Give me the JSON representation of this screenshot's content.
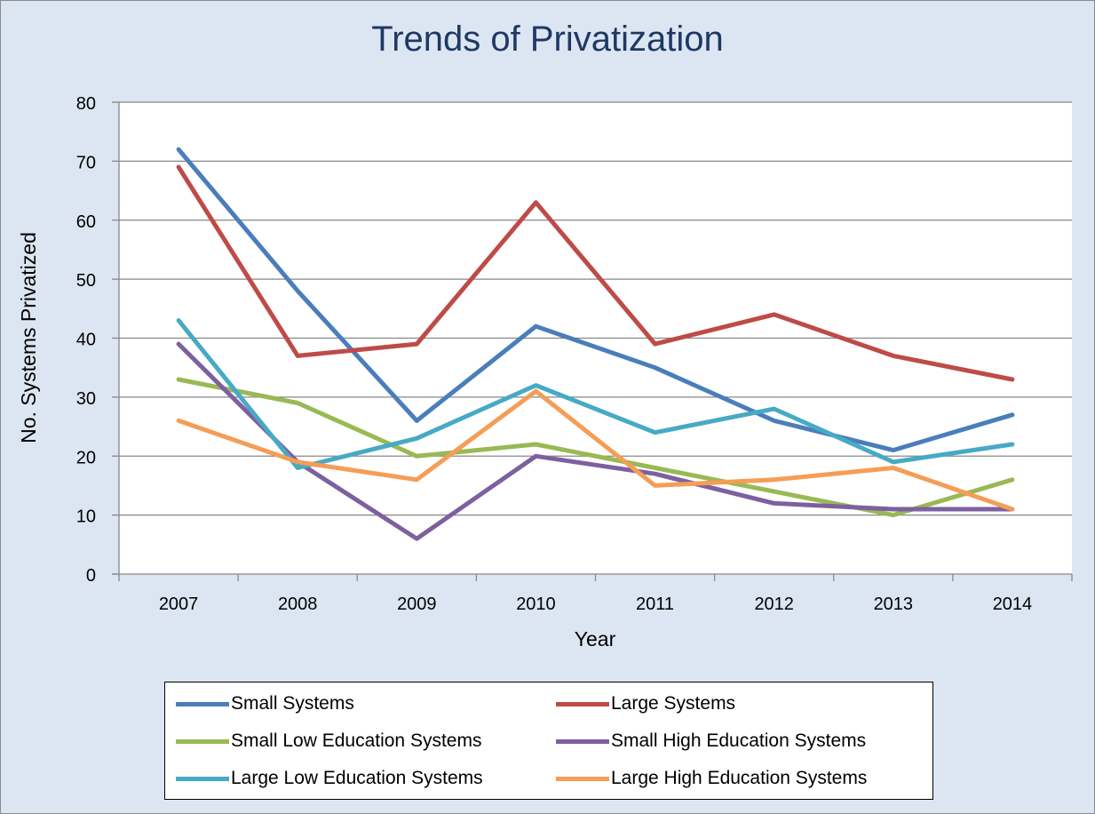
{
  "chart_data": {
    "type": "line",
    "title": "Trends of Privatization",
    "xlabel": "Year",
    "ylabel": "No. Systems Privatized",
    "ylim": [
      0,
      80
    ],
    "yticks": [
      0,
      10,
      20,
      30,
      40,
      50,
      60,
      70,
      80
    ],
    "categories": [
      "2007",
      "2008",
      "2009",
      "2010",
      "2011",
      "2012",
      "2013",
      "2014"
    ],
    "grid": true,
    "legend_position": "bottom",
    "series": [
      {
        "name": "Small Systems",
        "color": "#4a7ebb",
        "values": [
          72,
          48,
          26,
          42,
          35,
          26,
          21,
          27
        ]
      },
      {
        "name": "Large Systems",
        "color": "#be4b48",
        "values": [
          69,
          37,
          39,
          63,
          39,
          44,
          37,
          33
        ]
      },
      {
        "name": "Small Low Education Systems",
        "color": "#98b954",
        "values": [
          33,
          29,
          20,
          22,
          18,
          14,
          10,
          16
        ]
      },
      {
        "name": "Small High Education Systems",
        "color": "#7d60a0",
        "values": [
          39,
          19,
          6,
          20,
          17,
          12,
          11,
          11
        ]
      },
      {
        "name": "Large Low Education Systems",
        "color": "#46aac5",
        "values": [
          43,
          18,
          23,
          32,
          24,
          28,
          19,
          22
        ]
      },
      {
        "name": "Large High Education Systems",
        "color": "#f59d56",
        "values": [
          26,
          19,
          16,
          31,
          15,
          16,
          18,
          11
        ]
      }
    ]
  }
}
